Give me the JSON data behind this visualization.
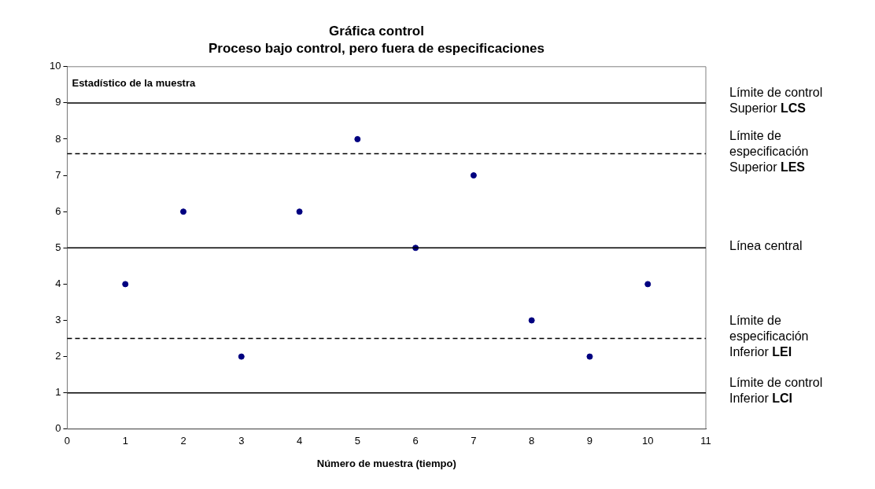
{
  "chart_data": {
    "type": "scatter",
    "title": "Gráfica control",
    "subtitle": "Proceso bajo control, pero fuera de especificaciones",
    "xlabel": "Número de muestra (tiempo)",
    "ylabel": "Estadístico de la muestra",
    "x": [
      1,
      2,
      3,
      4,
      5,
      6,
      7,
      8,
      9,
      10
    ],
    "series": [
      {
        "color": "#000080",
        "values": [
          4,
          6,
          2,
          6,
          8,
          5,
          7,
          3,
          2,
          4
        ]
      }
    ],
    "xlim": [
      0,
      11
    ],
    "xticks": [
      0,
      1,
      2,
      3,
      4,
      5,
      6,
      7,
      8,
      9,
      10,
      11
    ],
    "ylim": [
      0,
      10
    ],
    "yticks": [
      0,
      1,
      2,
      3,
      4,
      5,
      6,
      7,
      8,
      9,
      10
    ],
    "ref_lines": [
      {
        "axis": "y",
        "value": 9,
        "label": "Límite de control Superior LCS",
        "color": "#000000",
        "line_style": "solid"
      },
      {
        "axis": "y",
        "value": 7.6,
        "label": "Límite de especificación Superior LES",
        "color": "#000000",
        "line_style": "dashed"
      },
      {
        "axis": "y",
        "value": 5,
        "label": "Línea central",
        "color": "#000000",
        "line_style": "solid"
      },
      {
        "axis": "y",
        "value": 2.5,
        "label": "Límite de especificación Inferior LEI",
        "color": "#000000",
        "line_style": "dashed"
      },
      {
        "axis": "y",
        "value": 1,
        "label": "Límite de control Inferior LCI",
        "color": "#000000",
        "line_style": "solid"
      }
    ],
    "grid": false,
    "legend": false,
    "marker": "circle"
  }
}
